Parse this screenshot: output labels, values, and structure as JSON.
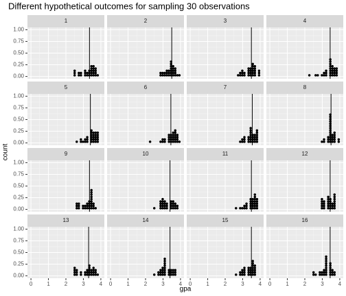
{
  "chart_data": {
    "type": "dotplot",
    "title": "Different hypothetical outcomes for sampling 30 observations",
    "xlabel": "gpa",
    "ylabel": "count",
    "xlim": [
      -0.2,
      4.2
    ],
    "ylim": [
      -0.05,
      1.05
    ],
    "xticks": [
      0,
      1,
      2,
      3,
      4
    ],
    "yticks": [
      {
        "value": 0,
        "label": "0.00"
      },
      {
        "value": 0.25,
        "label": "0.25"
      },
      {
        "value": 0.5,
        "label": "0.50"
      },
      {
        "value": 0.75,
        "label": "0.75"
      },
      {
        "value": 1,
        "label": "1.00"
      }
    ],
    "color": "#000000",
    "panels": [
      {
        "label": "1",
        "mean": 3.35,
        "values": [
          2.5,
          2.5,
          2.5,
          2.75,
          2.75,
          2.9,
          2.9,
          3.05,
          3.05,
          3.05,
          3.2,
          3.2,
          3.3,
          3.3,
          3.3,
          3.45,
          3.45,
          3.45,
          3.45,
          3.45,
          3.6,
          3.6,
          3.6,
          3.6,
          3.6,
          3.75,
          3.75,
          3.75,
          3.75,
          3.85
        ]
      },
      {
        "label": "2",
        "mean": 3.5,
        "values": [
          2.8,
          2.9,
          3.0,
          3.0,
          3.1,
          3.1,
          3.2,
          3.2,
          3.2,
          3.3,
          3.3,
          3.3,
          3.4,
          3.4,
          3.4,
          3.5,
          3.5,
          3.5,
          3.5,
          3.6,
          3.6,
          3.6,
          3.6,
          3.6,
          3.7,
          3.7,
          3.7,
          3.7,
          3.8,
          3.9
        ]
      },
      {
        "label": "3",
        "mean": 3.5,
        "values": [
          2.7,
          2.85,
          2.85,
          3.0,
          3.0,
          3.0,
          3.15,
          3.15,
          3.3,
          3.3,
          3.3,
          3.3,
          3.45,
          3.45,
          3.45,
          3.45,
          3.6,
          3.6,
          3.6,
          3.6,
          3.6,
          3.6,
          3.75,
          3.75,
          3.75,
          3.75,
          3.75,
          3.9,
          3.9,
          3.9
        ]
      },
      {
        "label": "4",
        "mean": 3.45,
        "values": [
          2.3,
          2.6,
          2.7,
          2.95,
          3.1,
          3.1,
          3.25,
          3.25,
          3.25,
          3.4,
          3.4,
          3.4,
          3.4,
          3.4,
          3.4,
          3.4,
          3.4,
          3.55,
          3.55,
          3.55,
          3.55,
          3.55,
          3.7,
          3.7,
          3.7,
          3.7,
          3.85,
          3.85,
          3.85,
          3.85
        ]
      },
      {
        "label": "5",
        "mean": 3.4,
        "values": [
          2.6,
          2.8,
          2.8,
          2.95,
          3.1,
          3.1,
          3.25,
          3.25,
          3.25,
          3.4,
          3.4,
          3.4,
          3.4,
          3.4,
          3.4,
          3.55,
          3.55,
          3.55,
          3.55,
          3.55,
          3.7,
          3.7,
          3.7,
          3.7,
          3.7,
          3.85,
          3.85,
          3.85,
          3.85,
          3.85
        ]
      },
      {
        "label": "6",
        "mean": 3.45,
        "values": [
          2.3,
          2.85,
          3.0,
          3.0,
          3.15,
          3.15,
          3.3,
          3.3,
          3.3,
          3.3,
          3.45,
          3.45,
          3.45,
          3.45,
          3.6,
          3.6,
          3.6,
          3.6,
          3.6,
          3.7,
          3.7,
          3.7,
          3.7,
          3.7,
          3.7,
          3.8,
          3.8,
          3.8,
          3.8,
          3.9
        ]
      },
      {
        "label": "7",
        "mean": 3.55,
        "values": [
          2.8,
          3.0,
          3.0,
          3.15,
          3.15,
          3.15,
          3.3,
          3.3,
          3.3,
          3.4,
          3.4,
          3.4,
          3.5,
          3.5,
          3.5,
          3.5,
          3.6,
          3.6,
          3.6,
          3.6,
          3.7,
          3.7,
          3.7,
          3.7,
          3.8,
          3.8,
          3.8,
          3.8,
          3.8,
          3.8
        ]
      },
      {
        "label": "8",
        "mean": 3.5,
        "values": [
          2.95,
          3.05,
          3.15,
          3.3,
          3.3,
          3.3,
          3.4,
          3.4,
          3.4,
          3.4,
          3.4,
          3.5,
          3.5,
          3.5,
          3.5,
          3.5,
          3.5,
          3.5,
          3.5,
          3.6,
          3.6,
          3.6,
          3.6,
          3.75,
          3.75,
          3.75,
          3.75,
          3.75,
          3.9,
          3.9
        ]
      },
      {
        "label": "9",
        "mean": 3.35,
        "values": [
          2.6,
          2.6,
          2.6,
          2.7,
          2.7,
          2.7,
          3.0,
          3.0,
          3.1,
          3.1,
          3.2,
          3.2,
          3.2,
          3.3,
          3.3,
          3.3,
          3.3,
          3.4,
          3.4,
          3.4,
          3.4,
          3.5,
          3.5,
          3.5,
          3.5,
          3.5,
          3.6,
          3.6,
          3.6,
          3.7
        ]
      },
      {
        "label": "10",
        "mean": 3.4,
        "values": [
          2.5,
          2.8,
          2.8,
          2.8,
          2.8,
          2.95,
          2.95,
          2.95,
          2.95,
          2.95,
          3.1,
          3.1,
          3.1,
          3.1,
          3.25,
          3.25,
          3.25,
          3.4,
          3.4,
          3.4,
          3.4,
          3.55,
          3.55,
          3.55,
          3.55,
          3.7,
          3.7,
          3.7,
          3.85,
          3.85
        ]
      },
      {
        "label": "11",
        "mean": 3.5,
        "values": [
          2.65,
          2.9,
          2.95,
          3.1,
          3.1,
          3.25,
          3.25,
          3.25,
          3.4,
          3.4,
          3.4,
          3.4,
          3.4,
          3.55,
          3.55,
          3.55,
          3.55,
          3.55,
          3.7,
          3.7,
          3.7,
          3.7,
          3.7,
          3.7,
          3.7,
          3.85,
          3.85,
          3.85,
          3.85,
          3.85
        ]
      },
      {
        "label": "12",
        "mean": 3.45,
        "values": [
          3.0,
          3.0,
          3.0,
          3.0,
          3.0,
          3.15,
          3.15,
          3.15,
          3.15,
          3.3,
          3.3,
          3.3,
          3.3,
          3.3,
          3.3,
          3.45,
          3.45,
          3.45,
          3.45,
          3.45,
          3.6,
          3.6,
          3.6,
          3.75,
          3.75,
          3.75,
          3.75,
          3.75,
          3.75,
          3.75
        ]
      },
      {
        "label": "13",
        "mean": 3.3,
        "values": [
          2.5,
          2.5,
          2.5,
          2.5,
          2.65,
          2.65,
          2.65,
          2.8,
          2.8,
          3.05,
          3.05,
          3.2,
          3.2,
          3.2,
          3.3,
          3.3,
          3.3,
          3.3,
          3.3,
          3.45,
          3.45,
          3.45,
          3.55,
          3.55,
          3.55,
          3.55,
          3.7,
          3.7,
          3.7,
          3.85
        ]
      },
      {
        "label": "14",
        "mean": 3.4,
        "values": [
          2.55,
          2.7,
          2.7,
          2.85,
          2.85,
          2.85,
          3.0,
          3.0,
          3.0,
          3.0,
          3.15,
          3.15,
          3.15,
          3.15,
          3.15,
          3.15,
          3.15,
          3.15,
          3.3,
          3.3,
          3.3,
          3.45,
          3.45,
          3.45,
          3.6,
          3.6,
          3.6,
          3.75,
          3.75,
          3.75
        ]
      },
      {
        "label": "15",
        "mean": 3.5,
        "values": [
          2.65,
          2.85,
          2.85,
          3.0,
          3.0,
          3.0,
          3.15,
          3.15,
          3.15,
          3.15,
          3.3,
          3.3,
          3.3,
          3.3,
          3.45,
          3.45,
          3.45,
          3.45,
          3.6,
          3.6,
          3.6,
          3.6,
          3.6,
          3.6,
          3.6,
          3.75,
          3.75,
          3.75,
          3.75,
          3.75
        ]
      },
      {
        "label": "16",
        "mean": 3.45,
        "values": [
          2.5,
          2.5,
          2.65,
          2.8,
          2.8,
          2.95,
          2.95,
          3.1,
          3.1,
          3.1,
          3.25,
          3.25,
          3.25,
          3.25,
          3.25,
          3.25,
          3.25,
          3.25,
          3.25,
          3.4,
          3.4,
          3.4,
          3.4,
          3.4,
          3.4,
          3.55,
          3.55,
          3.55,
          3.7,
          3.7
        ]
      }
    ]
  }
}
